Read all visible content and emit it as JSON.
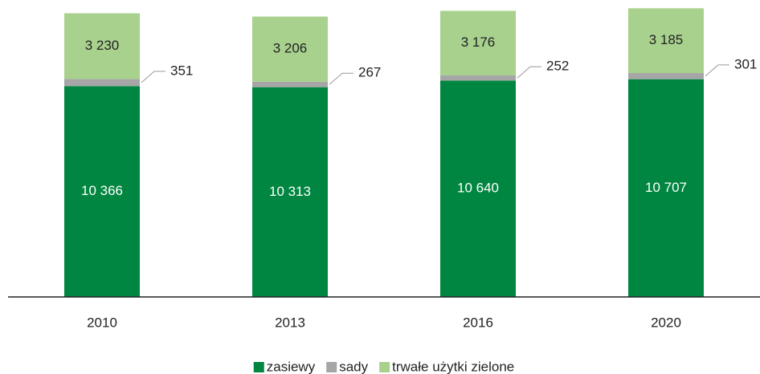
{
  "chart_data": {
    "type": "stacked_bar",
    "categories": [
      "2010",
      "2013",
      "2016",
      "2020"
    ],
    "series": [
      {
        "name": "zasiewy",
        "color": "#008641",
        "values": [
          10366,
          10313,
          10640,
          10707
        ],
        "value_labels": [
          "10 366",
          "10 313",
          "10 640",
          "10 707"
        ]
      },
      {
        "name": "sady",
        "color": "#a6a6a6",
        "values": [
          351,
          267,
          252,
          301
        ],
        "value_labels": [
          "351",
          "267",
          "252",
          "301"
        ]
      },
      {
        "name": "trwałe użytki zielone",
        "color": "#a9d18e",
        "values": [
          3230,
          3206,
          3176,
          3185
        ],
        "value_labels": [
          "3 230",
          "3 206",
          "3 176",
          "3 185"
        ]
      }
    ],
    "ylim": [
      0,
      14600
    ],
    "legend": "bottom"
  }
}
